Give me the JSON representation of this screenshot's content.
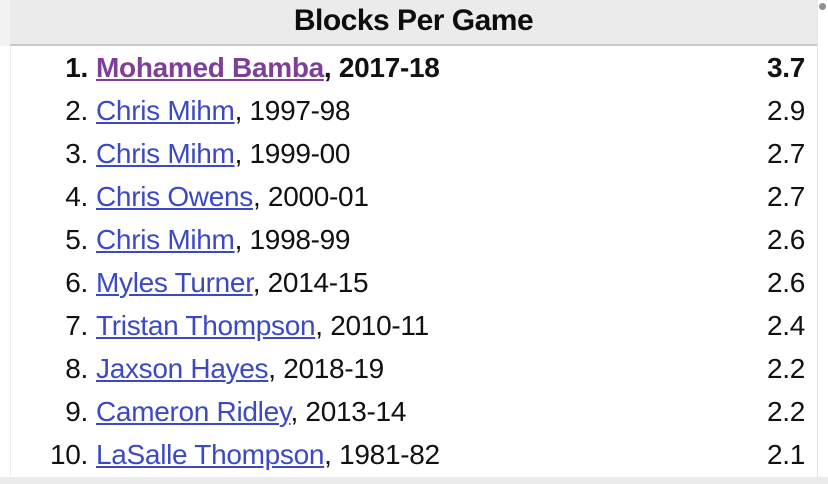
{
  "title": "Blocks Per Game",
  "colors": {
    "link": "#3b49c6",
    "visited_link": "#7d3f98",
    "header_bg": "#ebebeb",
    "header_border": "#c9c9c9",
    "gutter_bg": "#f2f2f1",
    "scrollbar_thumb": "#8e8e8e",
    "text": "#111111"
  },
  "leaderboard": {
    "rows": [
      {
        "rank": "1.",
        "player": "Mohamed Bamba",
        "season": ", 2017-18",
        "value": "3.7",
        "highlight": true,
        "visited": true
      },
      {
        "rank": "2.",
        "player": "Chris Mihm",
        "season": ", 1997-98",
        "value": "2.9",
        "highlight": false,
        "visited": false
      },
      {
        "rank": "3.",
        "player": "Chris Mihm",
        "season": ", 1999-00",
        "value": "2.7",
        "highlight": false,
        "visited": false
      },
      {
        "rank": "4.",
        "player": "Chris Owens",
        "season": ", 2000-01",
        "value": "2.7",
        "highlight": false,
        "visited": false
      },
      {
        "rank": "5.",
        "player": "Chris Mihm",
        "season": ", 1998-99",
        "value": "2.6",
        "highlight": false,
        "visited": false
      },
      {
        "rank": "6.",
        "player": "Myles Turner",
        "season": ", 2014-15",
        "value": "2.6",
        "highlight": false,
        "visited": false
      },
      {
        "rank": "7.",
        "player": "Tristan Thompson",
        "season": ", 2010-11",
        "value": "2.4",
        "highlight": false,
        "visited": false
      },
      {
        "rank": "8.",
        "player": "Jaxson Hayes",
        "season": ", 2018-19",
        "value": "2.2",
        "highlight": false,
        "visited": false
      },
      {
        "rank": "9.",
        "player": "Cameron Ridley",
        "season": ", 2013-14",
        "value": "2.2",
        "highlight": false,
        "visited": false
      },
      {
        "rank": "10.",
        "player": "LaSalle Thompson",
        "season": ", 1981-82",
        "value": "2.1",
        "highlight": false,
        "visited": false
      }
    ]
  }
}
